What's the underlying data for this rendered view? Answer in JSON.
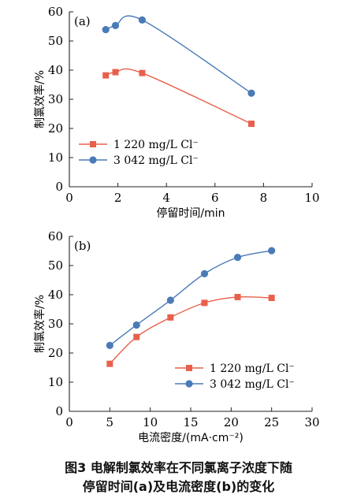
{
  "chart_data": [
    {
      "type": "line",
      "panel_label": "(a)",
      "xlabel": "停留时间/min",
      "ylabel": "制氯效率/%",
      "xlim": [
        0,
        10
      ],
      "ylim": [
        0,
        60
      ],
      "xticks": [
        0,
        2,
        4,
        6,
        8,
        10
      ],
      "yticks": [
        0,
        10,
        20,
        30,
        40,
        50,
        60
      ],
      "legend_position": "bottom-left",
      "series": [
        {
          "name": "1 220 mg/L Cl⁻",
          "marker": "square",
          "color": "#e8604c",
          "x": [
            1.5,
            1.9,
            3.0,
            7.5
          ],
          "y": [
            38.2,
            39.3,
            39.0,
            21.6
          ]
        },
        {
          "name": "3 042 mg/L Cl⁻",
          "marker": "circle",
          "color": "#4a7bb7",
          "x": [
            1.5,
            1.9,
            3.0,
            7.5
          ],
          "y": [
            53.9,
            55.3,
            57.2,
            32.1
          ]
        }
      ]
    },
    {
      "type": "line",
      "panel_label": "(b)",
      "xlabel": "电流密度/(mA·cm⁻²)",
      "ylabel": "制氯效率/%",
      "xlim": [
        0,
        30
      ],
      "ylim": [
        0,
        60
      ],
      "xticks": [
        0,
        5,
        10,
        15,
        20,
        25,
        30
      ],
      "yticks": [
        0,
        10,
        20,
        30,
        40,
        50,
        60
      ],
      "legend_position": "center-right",
      "series": [
        {
          "name": "1 220 mg/L Cl⁻",
          "marker": "square",
          "color": "#e8604c",
          "x": [
            5.0,
            8.3,
            12.5,
            16.7,
            20.8,
            25.0
          ],
          "y": [
            16.3,
            25.5,
            32.2,
            37.2,
            39.2,
            38.9
          ]
        },
        {
          "name": "3 042 mg/L Cl⁻",
          "marker": "circle",
          "color": "#4a7bb7",
          "x": [
            5.0,
            8.3,
            12.5,
            16.7,
            20.8,
            25.0
          ],
          "y": [
            22.6,
            29.6,
            38.1,
            47.2,
            52.8,
            55.1
          ]
        }
      ]
    }
  ],
  "caption": {
    "line1": "图3  电解制氯效率在不同氯离子浓度下随",
    "line2": "停留时间(a)及电流密度(b)的变化"
  }
}
